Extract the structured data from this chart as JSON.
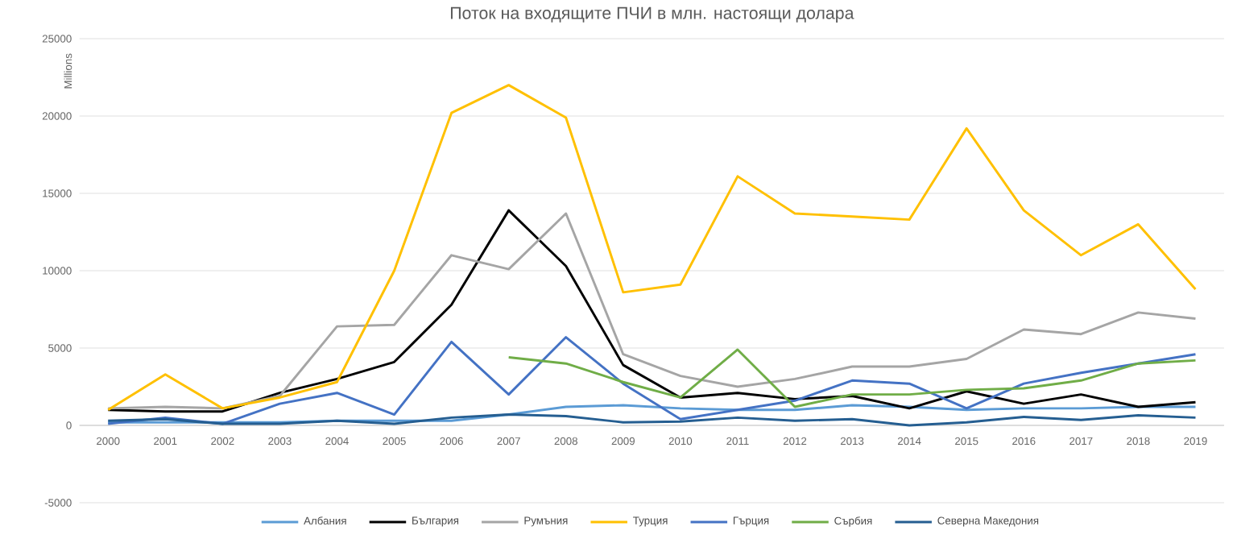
{
  "chart_data": {
    "type": "line",
    "title": "Поток на входящите ПЧИ в млн. настоящи долара",
    "ylabel": "Millions",
    "categories": [
      "2000",
      "2001",
      "2002",
      "2003",
      "2004",
      "2005",
      "2006",
      "2007",
      "2008",
      "2009",
      "2010",
      "2011",
      "2012",
      "2013",
      "2014",
      "2015",
      "2016",
      "2017",
      "2018",
      "2019"
    ],
    "series": [
      {
        "name": "Албания",
        "color": "#5b9bd5",
        "values": [
          200,
          200,
          200,
          200,
          300,
          300,
          300,
          700,
          1200,
          1300,
          1100,
          1000,
          1000,
          1300,
          1200,
          1000,
          1100,
          1100,
          1200,
          1200
        ]
      },
      {
        "name": "България",
        "color": "#000000",
        "values": [
          1000,
          900,
          900,
          2100,
          3000,
          4100,
          7800,
          13900,
          10300,
          3900,
          1800,
          2100,
          1700,
          1900,
          1100,
          2200,
          1400,
          2000,
          1200,
          1500
        ]
      },
      {
        "name": "Румъния",
        "color": "#a5a5a5",
        "values": [
          1100,
          1200,
          1100,
          1900,
          6400,
          6500,
          11000,
          10100,
          13700,
          4600,
          3200,
          2500,
          3000,
          3800,
          3800,
          4300,
          6200,
          5900,
          7300,
          6900
        ]
      },
      {
        "name": "Турция",
        "color": "#ffc000",
        "values": [
          1000,
          3300,
          1100,
          1800,
          2800,
          10000,
          20200,
          22000,
          19900,
          8600,
          9100,
          16100,
          13700,
          13500,
          13300,
          19200,
          13900,
          11000,
          13000,
          8800
        ]
      },
      {
        "name": "Гърция",
        "color": "#4472c4",
        "values": [
          100,
          500,
          100,
          1400,
          2100,
          700,
          5400,
          2000,
          5700,
          2700,
          400,
          1000,
          1600,
          2900,
          2700,
          1100,
          2700,
          3400,
          4000,
          4600
        ]
      },
      {
        "name": "Сърбия",
        "color": "#70ad47",
        "values": [
          null,
          null,
          null,
          null,
          null,
          null,
          null,
          4400,
          4000,
          2800,
          1800,
          4900,
          1200,
          2000,
          2000,
          2300,
          2400,
          2900,
          4000,
          4200
        ]
      },
      {
        "name": "Северна Македония",
        "color": "#255e91",
        "values": [
          300,
          400,
          100,
          100,
          300,
          100,
          500,
          700,
          600,
          200,
          250,
          500,
          300,
          400,
          0,
          200,
          550,
          350,
          650,
          500
        ]
      }
    ],
    "ylim": [
      -5000,
      25000
    ],
    "yticks": [
      -5000,
      0,
      5000,
      10000,
      15000,
      20000,
      25000
    ],
    "grid": "y",
    "legend": "bottom",
    "marker": "none",
    "line_style": "solid"
  }
}
